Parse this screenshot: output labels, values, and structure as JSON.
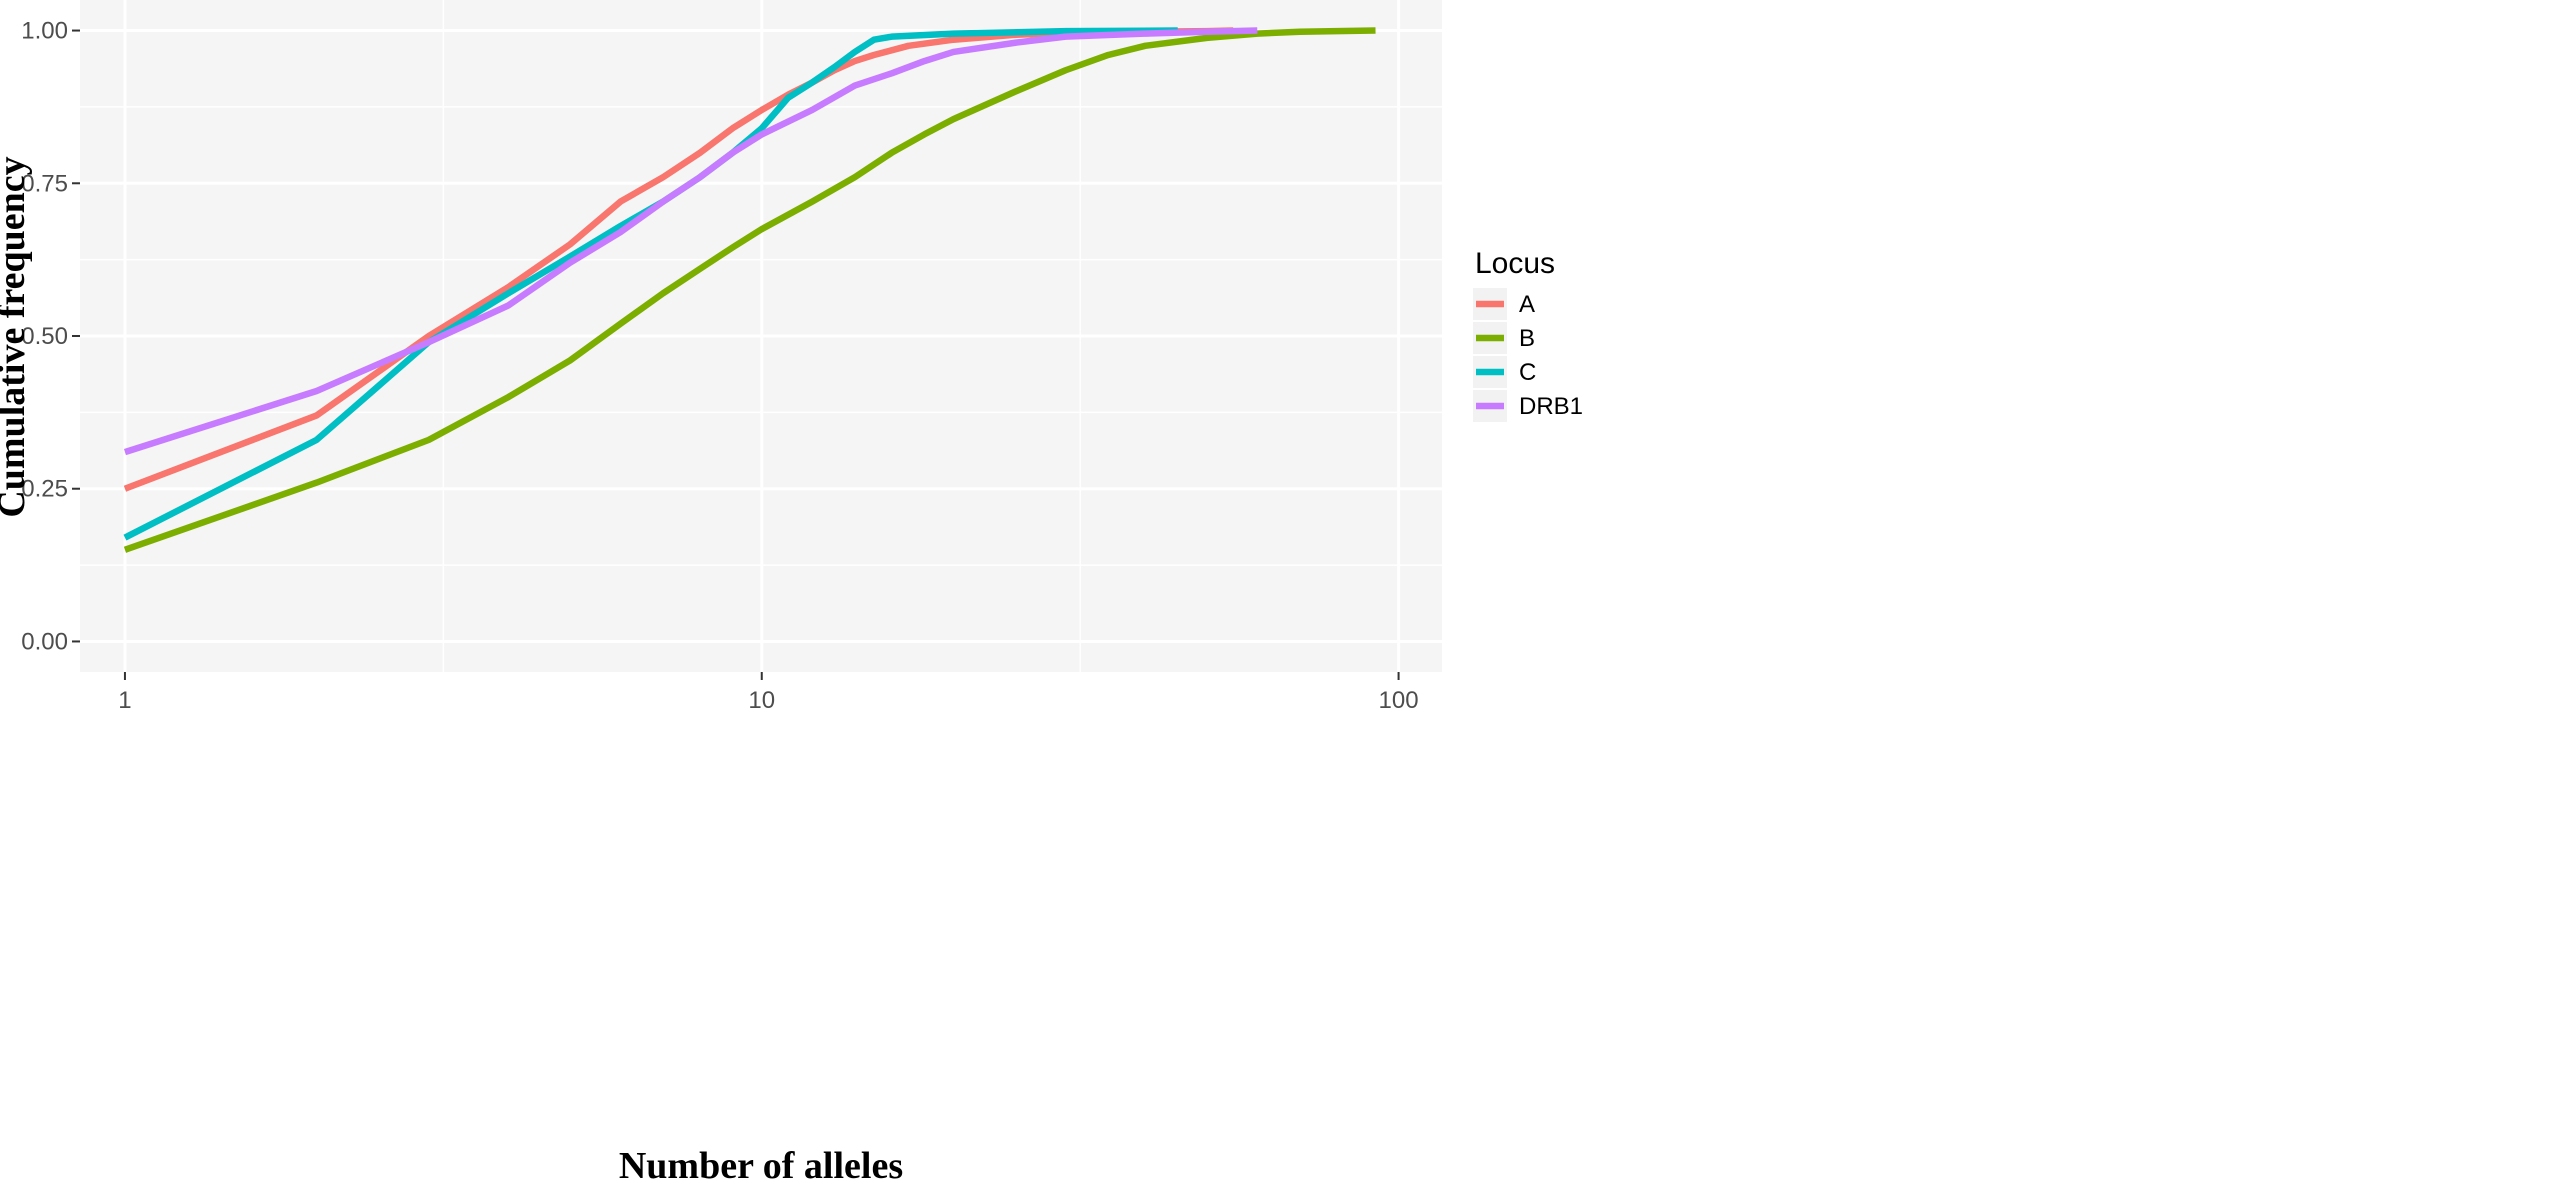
{
  "chart_data": {
    "type": "line",
    "title": "",
    "xlabel": "Number of alleles",
    "ylabel": "Cumulative frequency",
    "x_scale": "log10",
    "xlim": [
      0.85,
      117
    ],
    "ylim": [
      -0.05,
      1.05
    ],
    "x_ticks": [
      1,
      10,
      100
    ],
    "x_tick_labels": [
      "1",
      "10",
      "100"
    ],
    "y_ticks": [
      0,
      0.25,
      0.5,
      0.75,
      1.0
    ],
    "y_tick_labels": [
      "0.00",
      "0.25",
      "0.50",
      "0.75",
      "1.00"
    ],
    "grid": true,
    "legend": {
      "title": "Locus",
      "position": "right"
    },
    "series": [
      {
        "name": "A",
        "color": "#F8766D",
        "points": [
          [
            1,
            0.25
          ],
          [
            2,
            0.37
          ],
          [
            3,
            0.5
          ],
          [
            4,
            0.58
          ],
          [
            5,
            0.65
          ],
          [
            6,
            0.72
          ],
          [
            7,
            0.76
          ],
          [
            8,
            0.8
          ],
          [
            9,
            0.84
          ],
          [
            10,
            0.87
          ],
          [
            11,
            0.895
          ],
          [
            12,
            0.915
          ],
          [
            13,
            0.935
          ],
          [
            14,
            0.95
          ],
          [
            15,
            0.96
          ],
          [
            17,
            0.975
          ],
          [
            20,
            0.985
          ],
          [
            25,
            0.993
          ],
          [
            30,
            0.996
          ],
          [
            40,
            0.998
          ],
          [
            50,
            0.999
          ],
          [
            55,
            1.0
          ]
        ]
      },
      {
        "name": "B",
        "color": "#7CAE00",
        "points": [
          [
            1,
            0.15
          ],
          [
            2,
            0.26
          ],
          [
            3,
            0.33
          ],
          [
            4,
            0.4
          ],
          [
            5,
            0.46
          ],
          [
            6,
            0.52
          ],
          [
            7,
            0.57
          ],
          [
            8,
            0.61
          ],
          [
            9,
            0.645
          ],
          [
            10,
            0.675
          ],
          [
            12,
            0.72
          ],
          [
            14,
            0.76
          ],
          [
            16,
            0.8
          ],
          [
            18,
            0.83
          ],
          [
            20,
            0.855
          ],
          [
            25,
            0.9
          ],
          [
            30,
            0.935
          ],
          [
            35,
            0.96
          ],
          [
            40,
            0.975
          ],
          [
            50,
            0.988
          ],
          [
            60,
            0.995
          ],
          [
            70,
            0.998
          ],
          [
            80,
            0.999
          ],
          [
            92,
            1.0
          ]
        ]
      },
      {
        "name": "C",
        "color": "#00BFC4",
        "points": [
          [
            1,
            0.17
          ],
          [
            2,
            0.33
          ],
          [
            3,
            0.49
          ],
          [
            4,
            0.57
          ],
          [
            5,
            0.63
          ],
          [
            6,
            0.68
          ],
          [
            7,
            0.72
          ],
          [
            8,
            0.76
          ],
          [
            9,
            0.8
          ],
          [
            10,
            0.84
          ],
          [
            11,
            0.89
          ],
          [
            12,
            0.915
          ],
          [
            13,
            0.94
          ],
          [
            14,
            0.965
          ],
          [
            15,
            0.985
          ],
          [
            16,
            0.99
          ],
          [
            20,
            0.995
          ],
          [
            30,
            0.999
          ],
          [
            45,
            1.0
          ]
        ]
      },
      {
        "name": "DRB1",
        "color": "#C77CFF",
        "points": [
          [
            1,
            0.31
          ],
          [
            2,
            0.41
          ],
          [
            3,
            0.49
          ],
          [
            4,
            0.55
          ],
          [
            5,
            0.62
          ],
          [
            6,
            0.67
          ],
          [
            7,
            0.72
          ],
          [
            8,
            0.76
          ],
          [
            9,
            0.8
          ],
          [
            10,
            0.83
          ],
          [
            12,
            0.87
          ],
          [
            14,
            0.91
          ],
          [
            16,
            0.93
          ],
          [
            18,
            0.95
          ],
          [
            20,
            0.965
          ],
          [
            25,
            0.98
          ],
          [
            30,
            0.99
          ],
          [
            40,
            0.995
          ],
          [
            50,
            0.998
          ],
          [
            60,
            1.0
          ]
        ]
      }
    ]
  }
}
